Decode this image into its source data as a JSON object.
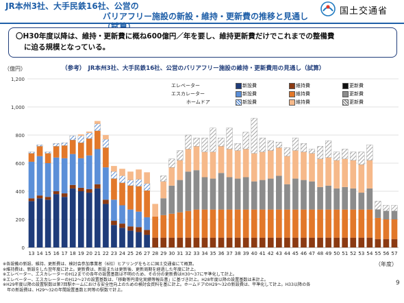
{
  "header": {
    "title_line1": "JR本州3社、大手民鉄16社、公営の",
    "title_line2": "バリアフリー施設の新設・維持・更新費の推移と見通し（試算）",
    "ministry": "国土交通省"
  },
  "callout": {
    "line1": "〇H30年度以降は、維持・更新費に概ね600億円／年を要し、維持更新費だけでこれまでの整備費",
    "line2": "に迫る規模となっている。"
  },
  "chart_data": {
    "type": "bar",
    "stacked": true,
    "title": "（参考）　JR本州3社、大手民鉄16社、公営のバリアフリー施設の維持・更新費用の見通し（試算）",
    "ylabel": "（億円）",
    "xlabel": "（年度）",
    "ylim": [
      0,
      1200
    ],
    "yticks": [
      0,
      200,
      400,
      600,
      800,
      1000,
      1200
    ],
    "ytick_labels": [
      "0",
      "200",
      "400",
      "600",
      "800",
      "1,000",
      "1,200"
    ],
    "grid": true,
    "legend_position": "top-right",
    "legend_rows": [
      "エレベーター",
      "エスカレーター",
      "ホームドア"
    ],
    "legend_cols": [
      "新設費",
      "維持費",
      "更新費"
    ],
    "categories": [
      "13",
      "14",
      "15",
      "16",
      "17",
      "18",
      "19",
      "20",
      "21",
      "22",
      "23",
      "24",
      "25",
      "26",
      "27",
      "28",
      "29",
      "30",
      "31",
      "32",
      "33",
      "34",
      "35",
      "36",
      "37",
      "38",
      "39",
      "40",
      "41",
      "42",
      "43",
      "44",
      "45",
      "46",
      "47",
      "48",
      "49",
      "50",
      "51",
      "52",
      "53",
      "54",
      "55",
      "56",
      "57"
    ],
    "series": [
      {
        "name": "エレベーター新設費",
        "color": "#1f3c7a",
        "pattern": "solid",
        "values": [
          330,
          350,
          340,
          380,
          360,
          420,
          400,
          390,
          420,
          310,
          160,
          140,
          120,
          110,
          90,
          0,
          0,
          0,
          0,
          0,
          0,
          0,
          0,
          0,
          0,
          0,
          0,
          0,
          0,
          0,
          0,
          0,
          0,
          0,
          0,
          0,
          0,
          0,
          0,
          0,
          0,
          0,
          0,
          0,
          0
        ]
      },
      {
        "name": "エレベーター維持費",
        "color": "#8b3a12",
        "pattern": "solid",
        "values": [
          20,
          20,
          20,
          20,
          25,
          25,
          25,
          25,
          30,
          30,
          30,
          30,
          30,
          35,
          35,
          70,
          70,
          70,
          70,
          70,
          70,
          70,
          70,
          70,
          70,
          70,
          70,
          70,
          70,
          70,
          70,
          70,
          70,
          70,
          70,
          70,
          70,
          70,
          70,
          70,
          70,
          70,
          60,
          60,
          60
        ]
      },
      {
        "name": "エレベーター更新費",
        "color": "#111111",
        "pattern": "solid",
        "values": [
          0,
          0,
          0,
          0,
          0,
          0,
          0,
          0,
          0,
          0,
          0,
          0,
          0,
          0,
          0,
          0,
          0,
          0,
          0,
          0,
          0,
          0,
          0,
          0,
          0,
          0,
          0,
          0,
          0,
          0,
          0,
          0,
          0,
          0,
          0,
          0,
          0,
          0,
          0,
          0,
          0,
          0,
          0,
          0,
          0
        ]
      },
      {
        "name": "エスカレーター新設費",
        "color": "#5b8fd8",
        "pattern": "solid",
        "values": [
          260,
          280,
          240,
          240,
          250,
          220,
          210,
          240,
          250,
          230,
          150,
          130,
          120,
          110,
          90,
          0,
          0,
          0,
          0,
          0,
          0,
          0,
          0,
          0,
          0,
          0,
          0,
          0,
          0,
          0,
          0,
          0,
          0,
          0,
          0,
          0,
          0,
          0,
          0,
          0,
          0,
          0,
          0,
          0,
          0
        ]
      },
      {
        "name": "エスカレーター維持費",
        "color": "#e2782a",
        "pattern": "solid",
        "values": [
          60,
          70,
          70,
          80,
          90,
          100,
          110,
          120,
          130,
          140,
          150,
          160,
          170,
          180,
          190,
          150,
          160,
          170,
          180,
          190,
          200,
          200,
          200,
          200,
          200,
          200,
          200,
          200,
          200,
          200,
          200,
          200,
          200,
          200,
          200,
          200,
          200,
          200,
          200,
          200,
          200,
          200,
          150,
          140,
          140
        ]
      },
      {
        "name": "エスカレーター更新費",
        "color": "#8c8c8c",
        "pattern": "solid",
        "values": [
          0,
          0,
          0,
          0,
          0,
          0,
          0,
          0,
          0,
          0,
          0,
          0,
          0,
          0,
          0,
          0,
          120,
          200,
          230,
          280,
          280,
          230,
          220,
          260,
          230,
          220,
          230,
          200,
          210,
          220,
          240,
          180,
          220,
          210,
          200,
          160,
          170,
          150,
          160,
          150,
          120,
          150,
          60,
          60,
          60
        ]
      },
      {
        "name": "ホームドア新設費",
        "color": "#9fc0ec",
        "pattern": "hatch-blue",
        "values": [
          10,
          10,
          10,
          20,
          20,
          30,
          50,
          40,
          50,
          60,
          50,
          50,
          40,
          50,
          50,
          0,
          0,
          0,
          0,
          0,
          0,
          0,
          0,
          0,
          0,
          0,
          0,
          0,
          0,
          0,
          0,
          0,
          0,
          0,
          0,
          0,
          0,
          0,
          0,
          0,
          0,
          0,
          0,
          0,
          0
        ]
      },
      {
        "name": "ホームドア維持費",
        "color": "#f6b98a",
        "pattern": "solid",
        "values": [
          0,
          0,
          0,
          0,
          0,
          0,
          10,
          10,
          20,
          30,
          40,
          50,
          60,
          70,
          80,
          90,
          120,
          130,
          140,
          160,
          170,
          180,
          190,
          190,
          200,
          200,
          200,
          200,
          200,
          200,
          200,
          200,
          200,
          200,
          200,
          200,
          200,
          200,
          200,
          200,
          200,
          200,
          0,
          0,
          0
        ]
      },
      {
        "name": "ホームドア更新費",
        "color": "#bbbbbb",
        "pattern": "hatch-gray",
        "values": [
          0,
          0,
          0,
          0,
          0,
          0,
          0,
          0,
          0,
          0,
          0,
          0,
          0,
          0,
          0,
          0,
          40,
          60,
          70,
          100,
          60,
          100,
          170,
          60,
          150,
          50,
          120,
          250,
          100,
          70,
          40,
          60,
          90,
          60,
          30,
          90,
          120,
          60,
          70,
          60,
          90,
          110,
          60,
          40,
          40
        ]
      }
    ]
  },
  "notes": [
    "※各設備の新設、維持、更新費は、検討会参加事業者（6社）ヒアリングをもとに国土交通省にて概算。",
    "※維持費は、新設をした翌年度に計上。更新費は、新設または更新後、更新周期を経過した年度に計上。",
    "※エレベーター、エスカレーターのH12までの各年の設置基数は不明のため、その分の更新費はH30～37に平準化して計上。",
    "※エレベーター、エスカレーターのH12～27の設置基数は、「移動等円滑化実績等報告書」に基づき計上。H28年度以降の設置基数は未計上。",
    "※H29年度以降の設置駅数は第7回駅ホームにおける安全性向上のための検討会資料を基に計上。ホームドアのH29～32の新設費は、平準化して計上。H33以降の各",
    "　年の新設費は、H29～32の年間設置基数と同等の駅数で計上。"
  ],
  "page_number": "9"
}
